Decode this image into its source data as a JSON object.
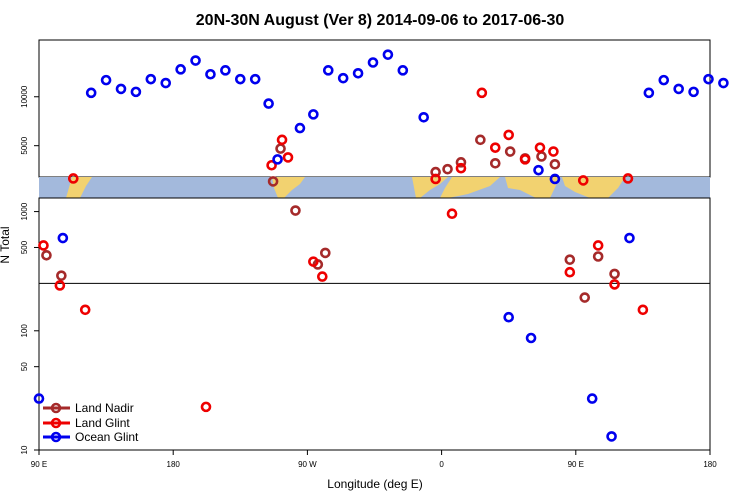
{
  "chart_data": {
    "type": "scatter",
    "title": "20N-30N August (Ver 8)   2014-09-06 to 2017-06-30",
    "xlabel": "Longitude (deg E)",
    "ylabel": "N Total",
    "x_ticks": [
      {
        "value": -90,
        "label": "90 E"
      },
      {
        "value": 0,
        "label": "180"
      },
      {
        "value": 90,
        "label": "90 W"
      },
      {
        "value": 180,
        "label": "0"
      },
      {
        "value": 270,
        "label": "90 E"
      },
      {
        "value": 360,
        "label": "180"
      }
    ],
    "xlim": [
      -90,
      360
    ],
    "upper_panel": {
      "scale": "linear",
      "ylim": [
        1800,
        15800
      ],
      "y_ticks": [
        {
          "value": 5000,
          "label": "5000"
        },
        {
          "value": 10000,
          "label": "10000"
        }
      ]
    },
    "lower_panel": {
      "scale": "log",
      "ylim": [
        10,
        1300
      ],
      "y_ticks": [
        {
          "value": 10,
          "label": "10"
        },
        {
          "value": 50,
          "label": "50"
        },
        {
          "value": 100,
          "label": "100"
        },
        {
          "value": 500,
          "label": "500"
        },
        {
          "value": 1000,
          "label": "1000"
        }
      ],
      "reference_line": 250
    },
    "map_strip": {
      "description": "world map strip",
      "ocean_color": "#a3b9dc",
      "land_color": "#f2d270"
    },
    "series": [
      {
        "name": "Land Nadir",
        "color": "#a52a2a",
        "points": [
          {
            "x": -85,
            "y": 430
          },
          {
            "x": -75,
            "y": 290
          },
          {
            "x": 67,
            "y": 1350
          },
          {
            "x": 82,
            "y": 1020
          },
          {
            "x": 97,
            "y": 360
          },
          {
            "x": 102,
            "y": 450
          },
          {
            "x": 72,
            "y": 4700
          },
          {
            "x": 176,
            "y": 2300
          },
          {
            "x": 184,
            "y": 2600
          },
          {
            "x": 193,
            "y": 3300
          },
          {
            "x": 206,
            "y": 5600
          },
          {
            "x": 216,
            "y": 3200
          },
          {
            "x": 226,
            "y": 4400
          },
          {
            "x": 236,
            "y": 3700
          },
          {
            "x": 247,
            "y": 3900
          },
          {
            "x": 256,
            "y": 3100
          },
          {
            "x": 266,
            "y": 395
          },
          {
            "x": 276,
            "y": 190
          },
          {
            "x": 285,
            "y": 420
          },
          {
            "x": 296,
            "y": 300
          }
        ]
      },
      {
        "name": "Land Glint",
        "color": "#ee0000",
        "points": [
          {
            "x": -87,
            "y": 520
          },
          {
            "x": -76,
            "y": 240
          },
          {
            "x": -67,
            "y": 1650
          },
          {
            "x": -59,
            "y": 150
          },
          {
            "x": 22,
            "y": 23
          },
          {
            "x": 66,
            "y": 3000
          },
          {
            "x": 73,
            "y": 5600
          },
          {
            "x": 77,
            "y": 3800
          },
          {
            "x": 94,
            "y": 380
          },
          {
            "x": 100,
            "y": 285
          },
          {
            "x": 176,
            "y": 1600
          },
          {
            "x": 187,
            "y": 960
          },
          {
            "x": 193,
            "y": 2700
          },
          {
            "x": 207,
            "y": 10400
          },
          {
            "x": 216,
            "y": 4800
          },
          {
            "x": 225,
            "y": 6100
          },
          {
            "x": 236,
            "y": 3600
          },
          {
            "x": 246,
            "y": 4800
          },
          {
            "x": 255,
            "y": 4400
          },
          {
            "x": 266,
            "y": 310
          },
          {
            "x": 275,
            "y": 1450
          },
          {
            "x": 285,
            "y": 520
          },
          {
            "x": 296,
            "y": 245
          },
          {
            "x": 305,
            "y": 1650
          },
          {
            "x": 315,
            "y": 150
          }
        ]
      },
      {
        "name": "Ocean Glint",
        "color": "#0000ee",
        "points": [
          {
            "x": -90,
            "y": 27
          },
          {
            "x": -74,
            "y": 600
          },
          {
            "x": -55,
            "y": 10400
          },
          {
            "x": -45,
            "y": 11700
          },
          {
            "x": -35,
            "y": 10800
          },
          {
            "x": -25,
            "y": 10500
          },
          {
            "x": -15,
            "y": 11800
          },
          {
            "x": -5,
            "y": 11400
          },
          {
            "x": 5,
            "y": 12800
          },
          {
            "x": 15,
            "y": 13700
          },
          {
            "x": 25,
            "y": 12300
          },
          {
            "x": 35,
            "y": 12700
          },
          {
            "x": 45,
            "y": 11800
          },
          {
            "x": 55,
            "y": 11800
          },
          {
            "x": 64,
            "y": 9300
          },
          {
            "x": 70,
            "y": 3600
          },
          {
            "x": 85,
            "y": 6800
          },
          {
            "x": 94,
            "y": 8200
          },
          {
            "x": 104,
            "y": 12700
          },
          {
            "x": 114,
            "y": 11900
          },
          {
            "x": 124,
            "y": 12400
          },
          {
            "x": 134,
            "y": 13500
          },
          {
            "x": 144,
            "y": 14300
          },
          {
            "x": 154,
            "y": 12700
          },
          {
            "x": 168,
            "y": 7900
          },
          {
            "x": 225,
            "y": 130
          },
          {
            "x": 240,
            "y": 87
          },
          {
            "x": 245,
            "y": 2500
          },
          {
            "x": 256,
            "y": 1600
          },
          {
            "x": 281,
            "y": 27
          },
          {
            "x": 294,
            "y": 13
          },
          {
            "x": 306,
            "y": 600
          },
          {
            "x": 319,
            "y": 10400
          },
          {
            "x": 329,
            "y": 11700
          },
          {
            "x": 339,
            "y": 10800
          },
          {
            "x": 349,
            "y": 10500
          },
          {
            "x": 359,
            "y": 11800
          },
          {
            "x": 369,
            "y": 11400
          }
        ]
      }
    ],
    "legend": {
      "position": "bottom-left"
    }
  }
}
